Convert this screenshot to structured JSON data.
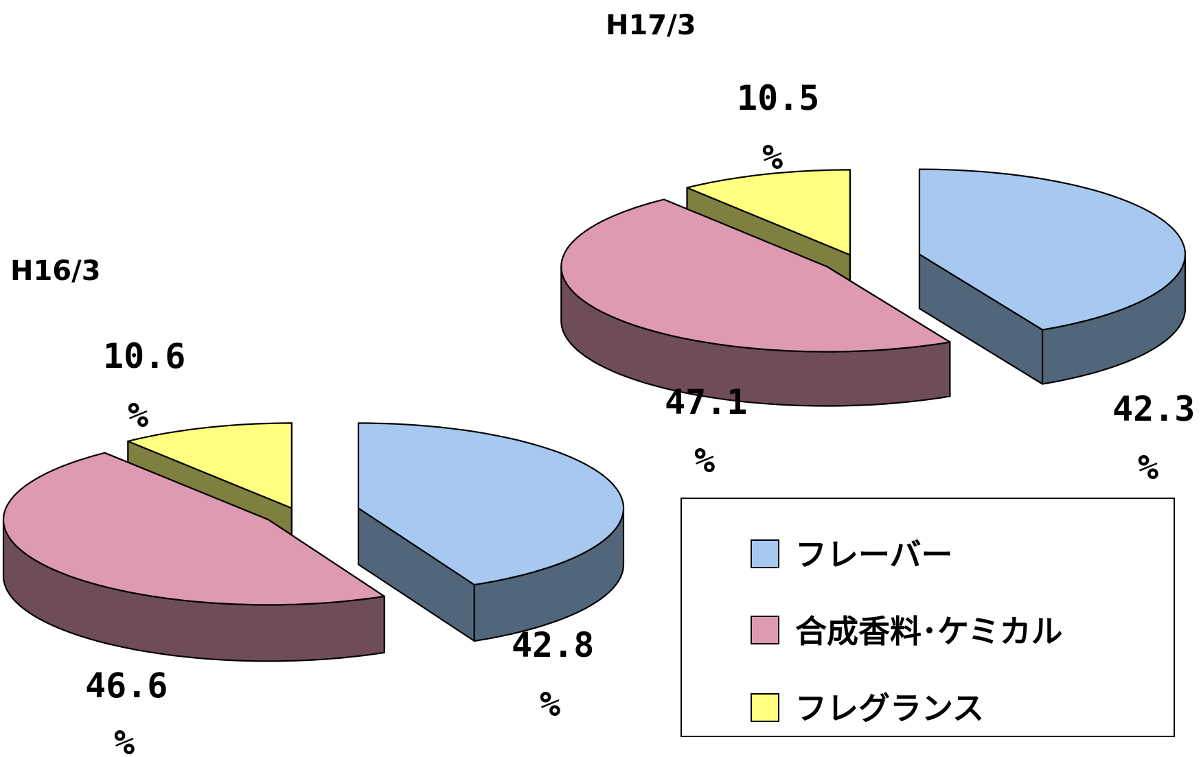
{
  "chart_data": [
    {
      "type": "pie",
      "title": "H16/3",
      "categories": [
        "フレーバー",
        "合成香料･ケミカル",
        "フレグランス"
      ],
      "values": [
        42.8,
        46.6,
        10.6
      ],
      "labels": [
        {
          "value": "42.8",
          "unit": "%"
        },
        {
          "value": "46.6",
          "unit": "%"
        },
        {
          "value": "10.6",
          "unit": "%"
        }
      ],
      "exploded": true,
      "three_d": true
    },
    {
      "type": "pie",
      "title": "H17/3",
      "categories": [
        "フレーバー",
        "合成香料･ケミカル",
        "フレグランス"
      ],
      "values": [
        42.3,
        47.1,
        10.5
      ],
      "labels": [
        {
          "value": "42.3",
          "unit": "%"
        },
        {
          "value": "47.1",
          "unit": "%"
        },
        {
          "value": "10.5",
          "unit": "%"
        }
      ],
      "exploded": true,
      "three_d": true
    }
  ],
  "legend": {
    "placement": "bottom-right",
    "items": [
      {
        "label": "フレーバー",
        "color": "#a7c8ef"
      },
      {
        "label": "合成香料･ケミカル",
        "color": "#de9ab1"
      },
      {
        "label": "フレグランス",
        "color": "#ffff80"
      }
    ]
  },
  "colors": {
    "flavor_top": "#a7c8ef",
    "flavor_side": "#52667b",
    "chemical_top": "#de9ab1",
    "chemical_side": "#6f4c59",
    "fragrance_top": "#ffff80",
    "fragrance_side": "#7f7f3f"
  }
}
